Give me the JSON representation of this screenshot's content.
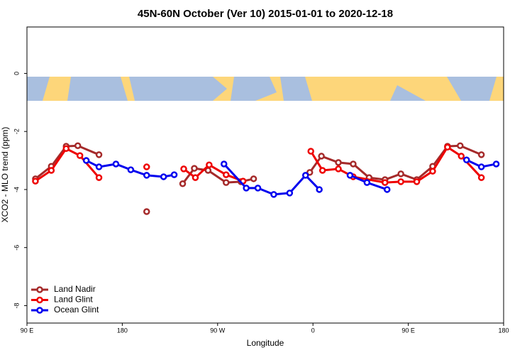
{
  "chart_data": {
    "type": "line",
    "title": "45N-60N October (Ver 10)   2015-01-01 to 2020-12-18",
    "xlabel": "Longitude",
    "ylabel": "XCO2 - MLO trend (ppm)",
    "xlim": [
      90,
      540
    ],
    "ylim": [
      -8.6,
      1.6
    ],
    "xticks": [
      {
        "value": 90,
        "label": "90 E"
      },
      180,
      {
        "value": 270,
        "label": "90 W"
      },
      {
        "value": 360,
        "label": "0"
      },
      {
        "value": 450,
        "label": "90 E"
      },
      {
        "value": 540,
        "label": "180"
      }
    ],
    "yticks": [
      0,
      -2,
      -4,
      -6,
      -8
    ],
    "legend": "bottom-left",
    "series": [
      {
        "name": "Land Nadir",
        "color": "#a52a2a",
        "x": [
          98,
          113,
          127,
          138,
          158,
          null,
          203,
          null,
          237,
          248,
          261,
          278,
          292,
          304,
          null,
          357,
          368,
          384,
          398,
          413,
          428,
          443,
          458,
          473,
          487,
          499,
          519
        ],
        "values": [
          -3.63,
          -3.2,
          -2.51,
          -2.49,
          -2.8,
          null,
          -4.76,
          null,
          -3.8,
          -3.27,
          -3.34,
          -3.76,
          -3.73,
          -3.63,
          null,
          -3.41,
          -2.85,
          -3.07,
          -3.12,
          -3.59,
          -3.66,
          -3.46,
          -3.66,
          -3.2,
          -2.51,
          -2.49,
          -2.8
        ]
      },
      {
        "name": "Land Glint",
        "color": "#ee0000",
        "x": [
          98,
          113,
          127,
          140,
          158,
          null,
          203,
          null,
          238,
          249,
          262,
          278,
          294,
          null,
          358,
          369,
          384,
          398,
          428,
          443,
          458,
          473,
          487,
          500,
          519
        ],
        "values": [
          -3.71,
          -3.34,
          -2.59,
          -2.83,
          -3.59,
          null,
          -3.22,
          null,
          -3.29,
          -3.59,
          -3.15,
          -3.49,
          -3.71,
          null,
          -2.68,
          -3.34,
          -3.29,
          -3.56,
          -3.76,
          -3.73,
          -3.73,
          -3.37,
          -2.54,
          -2.85,
          -3.59
        ]
      },
      {
        "name": "Ocean Glint",
        "color": "#0000ee",
        "x": [
          146,
          158,
          174,
          188,
          203,
          219,
          229,
          null,
          276,
          297,
          308,
          323,
          338,
          353,
          366,
          null,
          395,
          411,
          430,
          null,
          505,
          519,
          533
        ],
        "values": [
          -3.0,
          -3.22,
          -3.12,
          -3.32,
          -3.51,
          -3.56,
          -3.49,
          null,
          -3.12,
          -3.95,
          -3.95,
          -4.17,
          -4.12,
          -3.51,
          -4.0,
          null,
          -3.51,
          -3.76,
          -4.0,
          null,
          -2.98,
          -3.22,
          -3.12
        ]
      }
    ]
  }
}
